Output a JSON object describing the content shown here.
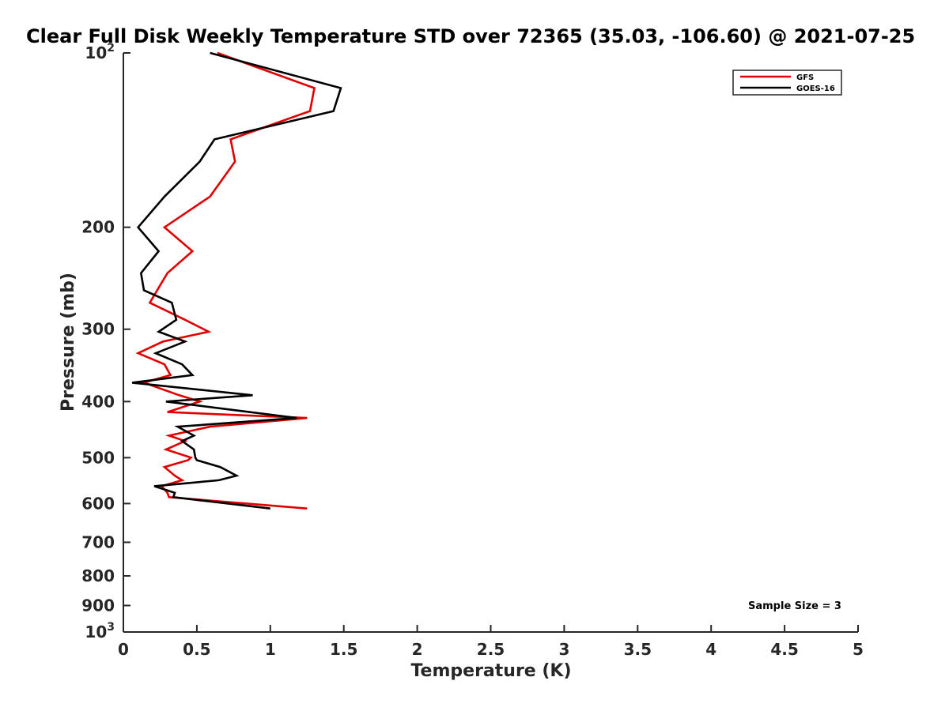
{
  "chart_data": {
    "type": "line",
    "title": "Clear Full Disk Weekly Temperature STD over 72365 (35.03, -106.60) @ 2021-07-25",
    "xlabel": "Temperature (K)",
    "ylabel": "Pressure (mb)",
    "xlim": [
      0,
      5
    ],
    "ylim": [
      100,
      1000
    ],
    "y_scale": "log",
    "y_reversed": true,
    "x_ticks": [
      0,
      0.5,
      1,
      1.5,
      2,
      2.5,
      3,
      3.5,
      4,
      4.5,
      5
    ],
    "x_tick_labels": [
      "0",
      "0.5",
      "1",
      "1.5",
      "2",
      "2.5",
      "3",
      "3.5",
      "4",
      "4.5",
      "5"
    ],
    "y_ticks": [
      {
        "value": 100,
        "base": "10",
        "exp": "2"
      },
      {
        "value": 200,
        "label": "200"
      },
      {
        "value": 300,
        "label": "300"
      },
      {
        "value": 400,
        "label": "400"
      },
      {
        "value": 500,
        "label": "500"
      },
      {
        "value": 600,
        "label": "600"
      },
      {
        "value": 700,
        "label": "700"
      },
      {
        "value": 800,
        "label": "800"
      },
      {
        "value": 900,
        "label": "900"
      },
      {
        "value": 1000,
        "base": "10",
        "exp": "3"
      }
    ],
    "grid": false,
    "legend_position": "top-right",
    "annotation": "Sample Size = 3",
    "series": [
      {
        "name": "GFS",
        "color": "#e00000",
        "points": [
          [
            0.64,
            100
          ],
          [
            1.3,
            115
          ],
          [
            1.27,
            126
          ],
          [
            0.73,
            141
          ],
          [
            0.76,
            154
          ],
          [
            0.59,
            177
          ],
          [
            0.28,
            200
          ],
          [
            0.47,
            220
          ],
          [
            0.3,
            240
          ],
          [
            0.23,
            257
          ],
          [
            0.18,
            270
          ],
          [
            0.42,
            289
          ],
          [
            0.58,
            303
          ],
          [
            0.27,
            315
          ],
          [
            0.1,
            330
          ],
          [
            0.28,
            345
          ],
          [
            0.32,
            360
          ],
          [
            0.14,
            371
          ],
          [
            0.38,
            390
          ],
          [
            0.52,
            400
          ],
          [
            0.3,
            417
          ],
          [
            1.25,
            427
          ],
          [
            0.59,
            442
          ],
          [
            0.31,
            458
          ],
          [
            0.42,
            468
          ],
          [
            0.29,
            484
          ],
          [
            0.46,
            500
          ],
          [
            0.44,
            505
          ],
          [
            0.28,
            519
          ],
          [
            0.35,
            537
          ],
          [
            0.4,
            547
          ],
          [
            0.26,
            560
          ],
          [
            0.3,
            575
          ],
          [
            0.31,
            585
          ],
          [
            1.25,
            612
          ]
        ]
      },
      {
        "name": "GOES-16",
        "color": "#000000",
        "points": [
          [
            0.59,
            100
          ],
          [
            1.48,
            115
          ],
          [
            1.43,
            126
          ],
          [
            0.62,
            141
          ],
          [
            0.52,
            154
          ],
          [
            0.28,
            177
          ],
          [
            0.1,
            200
          ],
          [
            0.24,
            220
          ],
          [
            0.12,
            240
          ],
          [
            0.14,
            257
          ],
          [
            0.33,
            270
          ],
          [
            0.36,
            289
          ],
          [
            0.24,
            303
          ],
          [
            0.42,
            315
          ],
          [
            0.22,
            330
          ],
          [
            0.4,
            345
          ],
          [
            0.47,
            360
          ],
          [
            0.06,
            371
          ],
          [
            0.88,
            390
          ],
          [
            0.29,
            400
          ],
          [
            1.18,
            427
          ],
          [
            0.37,
            442
          ],
          [
            0.48,
            458
          ],
          [
            0.4,
            468
          ],
          [
            0.48,
            484
          ],
          [
            0.49,
            500
          ],
          [
            0.5,
            505
          ],
          [
            0.66,
            519
          ],
          [
            0.77,
            537
          ],
          [
            0.65,
            547
          ],
          [
            0.21,
            560
          ],
          [
            0.35,
            575
          ],
          [
            0.34,
            585
          ],
          [
            1.0,
            612
          ]
        ]
      }
    ]
  }
}
